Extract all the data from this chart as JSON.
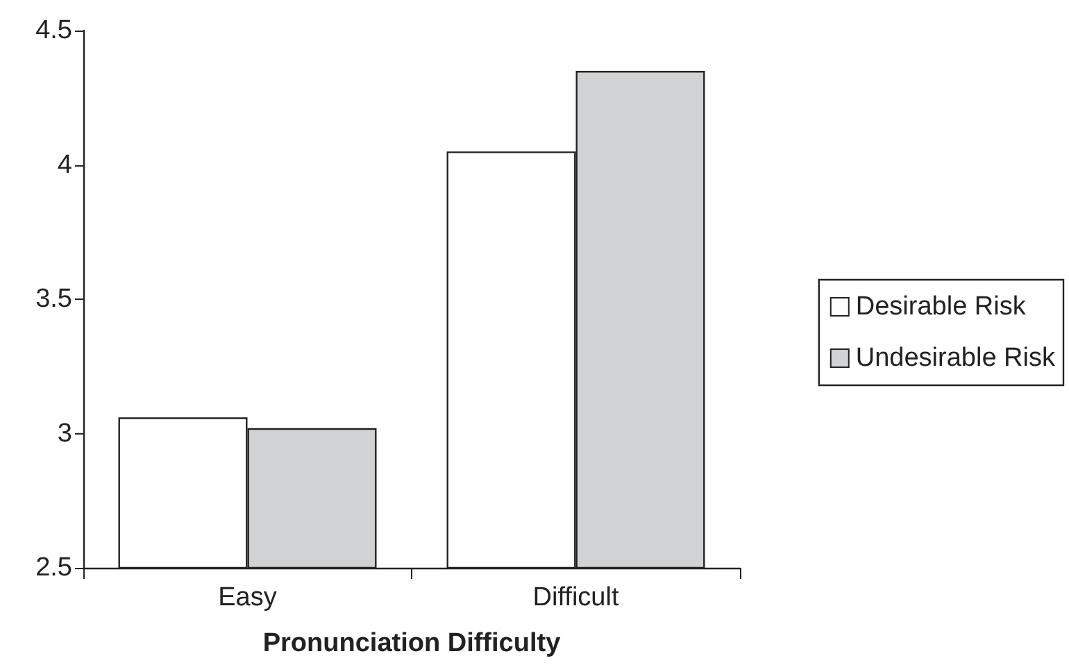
{
  "chart_data": {
    "type": "bar",
    "xlabel": "Pronunciation Difficulty",
    "categories": [
      "Easy",
      "Difficult"
    ],
    "series": [
      {
        "name": "Desirable Risk",
        "color": "#ffffff",
        "values": [
          3.06,
          4.05
        ]
      },
      {
        "name": "Undesirable Risk",
        "color": "#d1d2d4",
        "values": [
          3.02,
          4.35
        ]
      }
    ],
    "ylim": [
      2.5,
      4.5
    ],
    "yticks": [
      2.5,
      3,
      3.5,
      4,
      4.5
    ],
    "grid": false,
    "legend": "right"
  }
}
